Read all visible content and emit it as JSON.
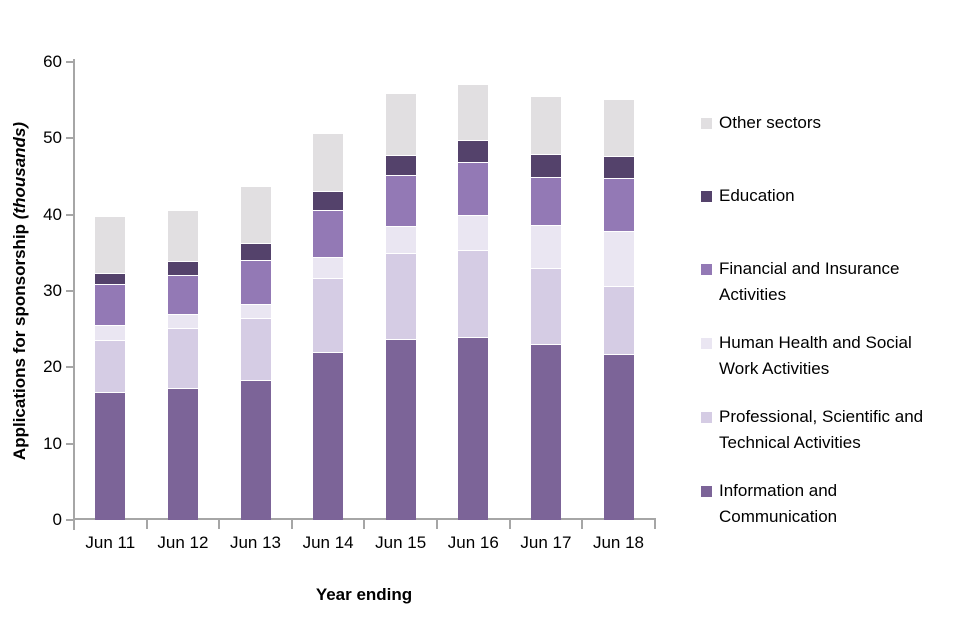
{
  "chart_data": {
    "type": "bar",
    "stacked": true,
    "title": "",
    "xlabel": "Year ending",
    "ylabel": "Applications for sponsorship",
    "ylabel_unit": "(thousands)",
    "ylim": [
      0,
      60
    ],
    "yticks": [
      0,
      10,
      20,
      30,
      40,
      50,
      60
    ],
    "grid": false,
    "legend_position": "right",
    "axis_color": "#A6A6A6",
    "categories": [
      "Jun 11",
      "Jun 12",
      "Jun 13",
      "Jun 14",
      "Jun 15",
      "Jun 16",
      "Jun 17",
      "Jun 18"
    ],
    "series": [
      {
        "name": "Information and Communication",
        "label_lines": [
          "Information and",
          "Communication"
        ],
        "color": "#7C6498",
        "values": [
          16.8,
          17.3,
          18.4,
          22.0,
          23.7,
          24.0,
          23.0,
          21.7
        ]
      },
      {
        "name": "Professional, Scientific and Technical Activities",
        "label_lines": [
          "Professional, Scientific and",
          "Technical Activities"
        ],
        "color": "#D5CCE4",
        "values": [
          6.8,
          7.8,
          8.1,
          9.7,
          11.3,
          11.4,
          10.0,
          8.9
        ]
      },
      {
        "name": "Human Health and Social Work Activities",
        "label_lines": [
          "Human Health and Social",
          "Work Activities"
        ],
        "color": "#EAE6F2",
        "values": [
          2.0,
          1.9,
          1.8,
          2.7,
          3.5,
          4.6,
          5.6,
          7.3
        ]
      },
      {
        "name": "Financial and Insurance Activities",
        "label_lines": [
          "Financial and Insurance",
          "Activities"
        ],
        "color": "#9379B5",
        "values": [
          5.3,
          5.1,
          5.7,
          6.2,
          6.7,
          6.9,
          6.4,
          6.9
        ]
      },
      {
        "name": "Education",
        "label_lines": [
          "Education"
        ],
        "color": "#54426B",
        "values": [
          1.5,
          1.8,
          2.3,
          2.5,
          2.6,
          2.9,
          2.9,
          2.9
        ]
      },
      {
        "name": "Other sectors",
        "label_lines": [
          "Other sectors"
        ],
        "color": "#E1DFE1",
        "values": [
          7.4,
          6.7,
          7.4,
          7.6,
          8.1,
          7.3,
          7.6,
          7.4
        ]
      }
    ]
  }
}
